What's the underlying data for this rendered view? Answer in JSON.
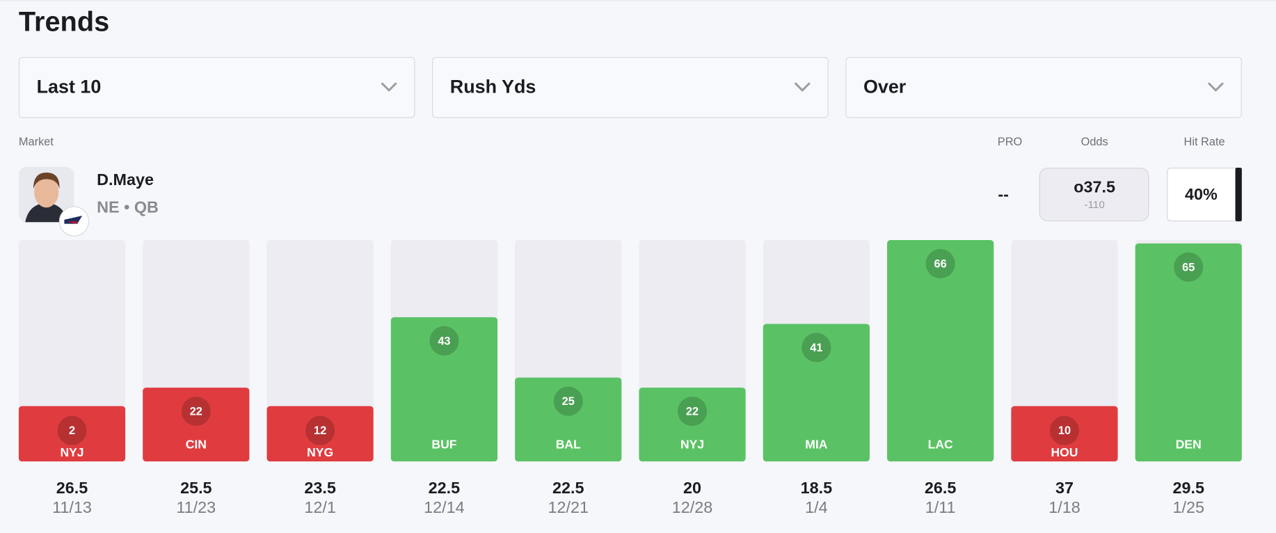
{
  "header": {
    "title": "Trends"
  },
  "filters": [
    "Last 10",
    "Rush Yds",
    "Over"
  ],
  "columns": {
    "market": "Market",
    "pro": "PRO",
    "odds": "Odds",
    "hit_rate": "Hit Rate"
  },
  "player": {
    "name": "D.Maye",
    "team_position": "NE • QB",
    "pro": "--",
    "odds_line": "o37.5",
    "odds_price": "-110",
    "hit_rate": "40%"
  },
  "colors": {
    "hit": "#5ac264",
    "miss": "#e03c3f",
    "track": "#ececf2"
  },
  "games": [
    {
      "value": 2,
      "opponent": "NYJ",
      "line": 26.5,
      "date": "11/13"
    },
    {
      "value": 22,
      "opponent": "CIN",
      "line": 25.5,
      "date": "11/23"
    },
    {
      "value": 12,
      "opponent": "NYG",
      "line": 23.5,
      "date": "12/1"
    },
    {
      "value": 43,
      "opponent": "BUF",
      "line": 22.5,
      "date": "12/14"
    },
    {
      "value": 25,
      "opponent": "BAL",
      "line": 22.5,
      "date": "12/21"
    },
    {
      "value": 22,
      "opponent": "NYJ",
      "line": 20,
      "date": "12/28"
    },
    {
      "value": 41,
      "opponent": "MIA",
      "line": 18.5,
      "date": "1/4"
    },
    {
      "value": 66,
      "opponent": "LAC",
      "line": 26.5,
      "date": "1/11"
    },
    {
      "value": 10,
      "opponent": "HOU",
      "line": 37,
      "date": "1/18"
    },
    {
      "value": 65,
      "opponent": "DEN",
      "line": 29.5,
      "date": "1/25"
    }
  ]
}
